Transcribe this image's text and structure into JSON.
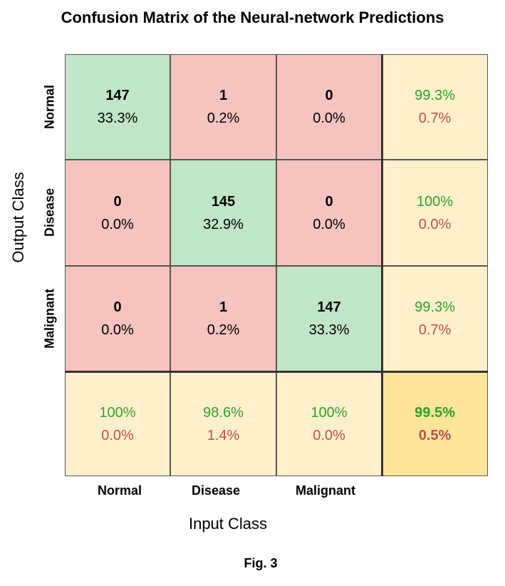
{
  "chart_data": {
    "type": "heatmap",
    "title": "Confusion Matrix of the Neural-network Predictions",
    "xlabel": "Input Class",
    "ylabel": "Output Class",
    "classes": [
      "Normal",
      "Disease",
      "Malignant"
    ],
    "matrix": [
      [
        {
          "count": "147",
          "pct": "33.3%"
        },
        {
          "count": "1",
          "pct": "0.2%"
        },
        {
          "count": "0",
          "pct": "0.0%"
        }
      ],
      [
        {
          "count": "0",
          "pct": "0.0%"
        },
        {
          "count": "145",
          "pct": "32.9%"
        },
        {
          "count": "0",
          "pct": "0.0%"
        }
      ],
      [
        {
          "count": "0",
          "pct": "0.0%"
        },
        {
          "count": "1",
          "pct": "0.2%"
        },
        {
          "count": "147",
          "pct": "33.3%"
        }
      ]
    ],
    "row_summary": [
      {
        "correct": "99.3%",
        "wrong": "0.7%"
      },
      {
        "correct": "100%",
        "wrong": "0.0%"
      },
      {
        "correct": "99.3%",
        "wrong": "0.7%"
      }
    ],
    "col_summary": [
      {
        "correct": "100%",
        "wrong": "0.0%"
      },
      {
        "correct": "98.6%",
        "wrong": "1.4%"
      },
      {
        "correct": "100%",
        "wrong": "0.0%"
      }
    ],
    "overall": {
      "correct": "99.5%",
      "wrong": "0.5%"
    },
    "colors": {
      "diagonal": "#c1e5c7",
      "off_diagonal": "#f5c4c1",
      "summary": "#fff0cc",
      "overall": "#fee59a",
      "correct_text": "#2ca02c",
      "wrong_text": "#c0504d"
    }
  },
  "caption": "Fig. 3"
}
